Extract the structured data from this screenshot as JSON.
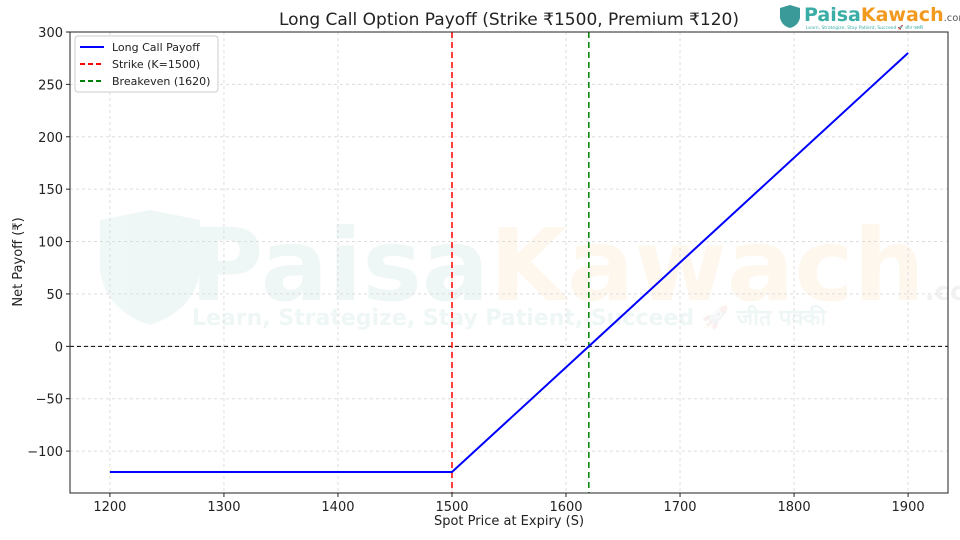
{
  "logo": {
    "brand_a": "Paisa",
    "brand_b": "Kawach",
    "suffix": ".com",
    "tagline": "Learn, Strategize, Stay Patient, Succeed 🚀 जीत पक्की"
  },
  "watermark": {
    "brand_a": "Paisa",
    "brand_b": "Kawach",
    "suffix": ".com",
    "tagline": "Learn, Strategize, Stay Patient, Succeed 🚀 जीत पक्की"
  },
  "chart_data": {
    "type": "line",
    "title": "Long Call Option Payoff (Strike ₹1500, Premium ₹120)",
    "xlabel": "Spot Price at Expiry (S)",
    "ylabel": "Net Payoff (₹)",
    "xlim": [
      1165,
      1935
    ],
    "ylim": [
      -140,
      300
    ],
    "xticks": [
      1200,
      1300,
      1400,
      1500,
      1600,
      1700,
      1800,
      1900
    ],
    "yticks": [
      -100,
      -50,
      0,
      50,
      100,
      150,
      200,
      250,
      300
    ],
    "ytick_labels": [
      "−100",
      "−50",
      "0",
      "50",
      "100",
      "150",
      "200",
      "250",
      "300"
    ],
    "grid": true,
    "legend_position": "top-left",
    "series": [
      {
        "name": "Long Call Payoff",
        "color": "#0000ff",
        "style": "solid",
        "x": [
          1200,
          1500,
          1900
        ],
        "y": [
          -120,
          -120,
          280
        ]
      }
    ],
    "vlines": [
      {
        "name": "Strike (K=1500)",
        "x": 1500,
        "color": "#ff0000",
        "style": "dashed"
      },
      {
        "name": "Breakeven (1620)",
        "x": 1620,
        "color": "#008000",
        "style": "dashed"
      }
    ],
    "hlines": [
      {
        "y": 0,
        "color": "#000000",
        "style": "dashed"
      }
    ]
  }
}
